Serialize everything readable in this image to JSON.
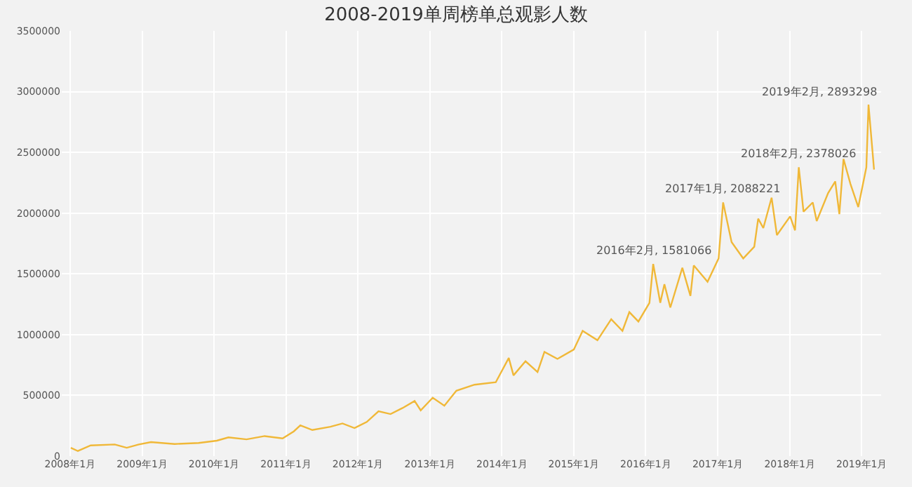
{
  "chart_data": {
    "type": "line",
    "title": "2008-2019单周榜单总观影人数",
    "x": [
      "2008-01-05",
      "2008-02-10",
      "2008-04-15",
      "2008-08-15",
      "2008-10-15",
      "2008-12-15",
      "2009-02-15",
      "2009-06-15",
      "2009-10-15",
      "2010-01-15",
      "2010-03-15",
      "2010-06-15",
      "2010-09-15",
      "2010-12-15",
      "2011-02-10",
      "2011-03-15",
      "2011-05-15",
      "2011-08-15",
      "2011-10-15",
      "2011-12-15",
      "2012-02-15",
      "2012-04-15",
      "2012-06-15",
      "2012-08-15",
      "2012-10-15",
      "2012-11-15",
      "2013-01-15",
      "2013-03-15",
      "2013-05-15",
      "2013-08-15",
      "2013-12-01",
      "2014-02-05",
      "2014-03-01",
      "2014-05-01",
      "2014-07-01",
      "2014-08-05",
      "2014-10-10",
      "2015-01-01",
      "2015-02-15",
      "2015-05-01",
      "2015-07-10",
      "2015-09-05",
      "2015-10-10",
      "2015-11-25",
      "2016-01-20",
      "2016-02-08",
      "2016-03-15",
      "2016-04-05",
      "2016-05-05",
      "2016-07-05",
      "2016-08-15",
      "2016-09-01",
      "2016-11-10",
      "2017-01-05",
      "2017-01-28",
      "2017-03-12",
      "2017-05-10",
      "2017-07-05",
      "2017-07-25",
      "2017-08-20",
      "2017-10-01",
      "2017-10-28",
      "2018-01-03",
      "2018-01-28",
      "2018-02-16",
      "2018-03-12",
      "2018-04-28",
      "2018-05-18",
      "2018-07-15",
      "2018-08-20",
      "2018-09-10",
      "2018-10-01",
      "2018-11-05",
      "2018-12-15",
      "2019-01-25",
      "2019-02-05",
      "2019-03-05"
    ],
    "series": [
      {
        "color": "#f0b838",
        "values": [
          69000,
          42000,
          88000,
          96000,
          69000,
          96000,
          115000,
          100000,
          108000,
          127000,
          154000,
          138000,
          165000,
          146000,
          204000,
          254000,
          215000,
          242000,
          269000,
          231000,
          281000,
          369000,
          346000,
          396000,
          454000,
          377000,
          481000,
          415000,
          538000,
          588000,
          608000,
          808000,
          665000,
          781000,
          692000,
          858000,
          800000,
          877000,
          1031000,
          954000,
          1127000,
          1031000,
          1185000,
          1108000,
          1262000,
          1581066,
          1262000,
          1415000,
          1223000,
          1550000,
          1319000,
          1569000,
          1435000,
          1627000,
          2088221,
          1762000,
          1627000,
          1723000,
          1954000,
          1877000,
          2127000,
          1819000,
          1973000,
          1858000,
          2378026,
          2012000,
          2088000,
          1935000,
          2165000,
          2261000,
          1992000,
          2446000,
          2242000,
          2050000,
          2377000,
          2893298,
          2358000
        ]
      }
    ],
    "xlim": [
      "2007-11-20",
      "2019-04-10"
    ],
    "xticks": [
      {
        "value": "2008-01-01",
        "label": "2008年1月"
      },
      {
        "value": "2009-01-01",
        "label": "2009年1月"
      },
      {
        "value": "2010-01-01",
        "label": "2010年1月"
      },
      {
        "value": "2011-01-01",
        "label": "2011年1月"
      },
      {
        "value": "2012-01-01",
        "label": "2012年1月"
      },
      {
        "value": "2013-01-01",
        "label": "2013年1月"
      },
      {
        "value": "2014-01-01",
        "label": "2014年1月"
      },
      {
        "value": "2015-01-01",
        "label": "2015年1月"
      },
      {
        "value": "2016-01-01",
        "label": "2016年1月"
      },
      {
        "value": "2017-01-01",
        "label": "2017年1月"
      },
      {
        "value": "2018-01-01",
        "label": "2018年1月"
      },
      {
        "value": "2019-01-01",
        "label": "2019年1月"
      }
    ],
    "ylim": [
      0,
      3500000
    ],
    "yticks": [
      0,
      500000,
      1000000,
      1500000,
      2000000,
      2500000,
      3000000,
      3500000
    ],
    "grid": true,
    "marker": "none",
    "line_style": "solid",
    "annotations": [
      {
        "text": "2016年2月, 1581066",
        "x": "2016-02-08",
        "y": 1581066
      },
      {
        "text": "2017年1月, 2088221",
        "x": "2017-01-28",
        "y": 2088221
      },
      {
        "text": "2018年2月, 2378026",
        "x": "2018-02-16",
        "y": 2378026
      },
      {
        "text": "2019年2月, 2893298",
        "x": "2019-02-05",
        "y": 2893298
      }
    ]
  }
}
